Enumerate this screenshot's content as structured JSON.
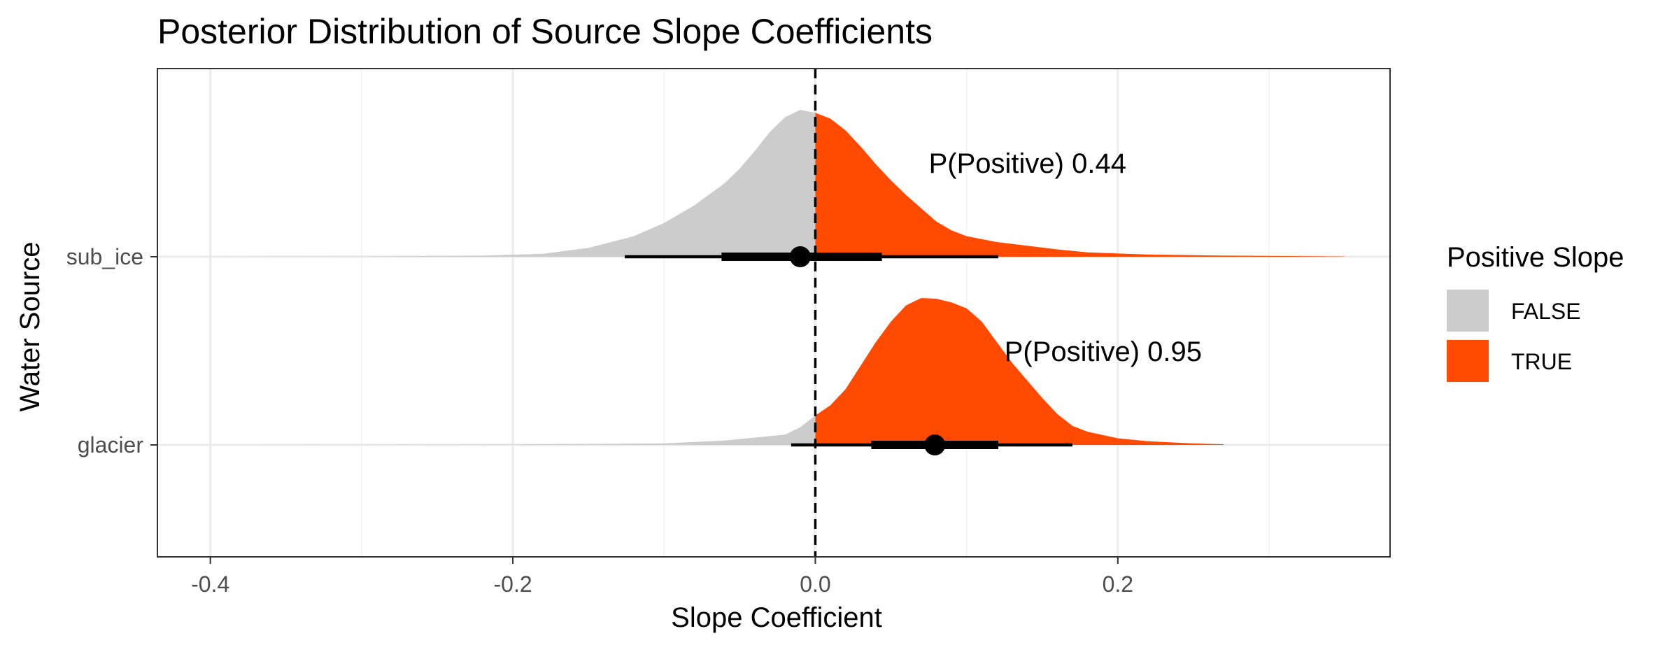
{
  "chart_data": {
    "type": "area",
    "subtype": "halfeye-density",
    "title": "Posterior Distribution of Source Slope Coefficients",
    "xlabel": "Slope Coefficient",
    "ylabel": "Water Source",
    "xlim": [
      -0.435,
      0.38
    ],
    "x_ticks": [
      -0.4,
      -0.2,
      0.0,
      0.2
    ],
    "x_tick_labels": [
      "-0.4",
      "-0.2",
      "0.0",
      "0.2"
    ],
    "x_minor_ticks": [
      -0.3,
      -0.1,
      0.1,
      0.3
    ],
    "categories": [
      "sub_ice",
      "glacier"
    ],
    "reference_line": 0.0,
    "grid": true,
    "legend": {
      "title": "Positive Slope",
      "position": "right",
      "entries": [
        {
          "label": "FALSE",
          "color": "#cccccc"
        },
        {
          "label": "TRUE",
          "color": "#ff4a00"
        }
      ]
    },
    "series": [
      {
        "category": "sub_ice",
        "annotation": "P(Positive) 0.44",
        "annotation_x": 0.075,
        "point_estimate": -0.01,
        "interval_66": [
          -0.062,
          0.044
        ],
        "interval_95": [
          -0.126,
          0.121
        ],
        "density": [
          [
            -0.42,
            0.0
          ],
          [
            -0.3,
            0.002
          ],
          [
            -0.22,
            0.008
          ],
          [
            -0.18,
            0.02
          ],
          [
            -0.15,
            0.06
          ],
          [
            -0.12,
            0.14
          ],
          [
            -0.1,
            0.23
          ],
          [
            -0.08,
            0.35
          ],
          [
            -0.06,
            0.5
          ],
          [
            -0.05,
            0.6
          ],
          [
            -0.04,
            0.72
          ],
          [
            -0.03,
            0.85
          ],
          [
            -0.02,
            0.95
          ],
          [
            -0.01,
            1.0
          ],
          [
            0.0,
            0.98
          ],
          [
            0.01,
            0.94
          ],
          [
            0.02,
            0.86
          ],
          [
            0.03,
            0.75
          ],
          [
            0.04,
            0.63
          ],
          [
            0.05,
            0.52
          ],
          [
            0.06,
            0.42
          ],
          [
            0.07,
            0.33
          ],
          [
            0.08,
            0.24
          ],
          [
            0.09,
            0.18
          ],
          [
            0.1,
            0.14
          ],
          [
            0.12,
            0.1
          ],
          [
            0.14,
            0.075
          ],
          [
            0.16,
            0.05
          ],
          [
            0.18,
            0.03
          ],
          [
            0.22,
            0.015
          ],
          [
            0.27,
            0.008
          ],
          [
            0.35,
            0.002
          ]
        ]
      },
      {
        "category": "glacier",
        "annotation": "P(Positive) 0.95",
        "annotation_x": 0.125,
        "point_estimate": 0.079,
        "interval_66": [
          0.037,
          0.121
        ],
        "interval_95": [
          -0.016,
          0.17
        ],
        "density": [
          [
            -0.4,
            0.0
          ],
          [
            -0.2,
            0.003
          ],
          [
            -0.1,
            0.01
          ],
          [
            -0.06,
            0.03
          ],
          [
            -0.04,
            0.05
          ],
          [
            -0.02,
            0.07
          ],
          [
            -0.01,
            0.12
          ],
          [
            0.0,
            0.2
          ],
          [
            0.01,
            0.27
          ],
          [
            0.02,
            0.38
          ],
          [
            0.03,
            0.54
          ],
          [
            0.04,
            0.7
          ],
          [
            0.05,
            0.84
          ],
          [
            0.06,
            0.95
          ],
          [
            0.07,
            1.0
          ],
          [
            0.08,
            0.995
          ],
          [
            0.09,
            0.97
          ],
          [
            0.1,
            0.93
          ],
          [
            0.11,
            0.84
          ],
          [
            0.12,
            0.7
          ],
          [
            0.13,
            0.56
          ],
          [
            0.14,
            0.44
          ],
          [
            0.15,
            0.32
          ],
          [
            0.16,
            0.21
          ],
          [
            0.17,
            0.13
          ],
          [
            0.18,
            0.09
          ],
          [
            0.2,
            0.045
          ],
          [
            0.22,
            0.025
          ],
          [
            0.25,
            0.01
          ],
          [
            0.27,
            0.004
          ]
        ]
      }
    ]
  }
}
